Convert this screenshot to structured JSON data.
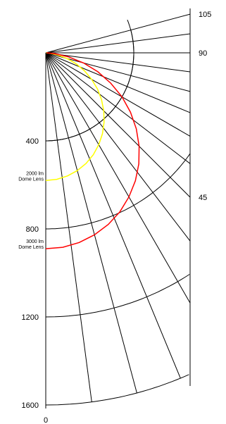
{
  "chart_data": {
    "type": "polar",
    "title": "",
    "radial_axis": {
      "ticks": [
        400,
        800,
        1200,
        1600
      ],
      "range": [
        0,
        1600
      ],
      "arc_rings": [
        400,
        800,
        1200,
        1600
      ]
    },
    "angular_axis": {
      "unit": "degrees",
      "range": [
        0,
        105
      ],
      "tick_labels": [
        {
          "angle": 105,
          "label": "105"
        },
        {
          "angle": 90,
          "label": "90"
        },
        {
          "angle": 45,
          "label": "45"
        },
        {
          "angle": 0,
          "label": "0"
        }
      ],
      "spokes": [
        0,
        7.5,
        15,
        22.5,
        30,
        37.5,
        45,
        52.5,
        60,
        67.5,
        75,
        82.5,
        90,
        97.5,
        105
      ]
    },
    "series": [
      {
        "name": "2000 lm Dome Lens",
        "color": "#ffff00",
        "annotation_lines": [
          "2000 lm",
          "Dome Lens"
        ],
        "angles": [
          0,
          5,
          10,
          15,
          20,
          25,
          30,
          35,
          40,
          45,
          50,
          55,
          60,
          65,
          70,
          75,
          80,
          85,
          90
        ],
        "values": [
          580,
          577,
          568,
          554,
          535,
          511,
          482,
          449,
          412,
          373,
          331,
          287,
          241,
          195,
          148,
          100,
          52,
          18,
          2
        ]
      },
      {
        "name": "3000 lm Dome Lens",
        "color": "#ff0000",
        "annotation_lines": [
          "3000 lm",
          "Dome Lens"
        ],
        "angles": [
          0,
          5,
          10,
          15,
          20,
          25,
          30,
          35,
          40,
          45,
          50,
          55,
          60,
          65,
          70,
          75,
          80,
          85,
          90
        ],
        "values": [
          890,
          887,
          875,
          856,
          830,
          797,
          756,
          710,
          658,
          600,
          537,
          470,
          400,
          326,
          252,
          178,
          104,
          40,
          4
        ]
      }
    ]
  }
}
